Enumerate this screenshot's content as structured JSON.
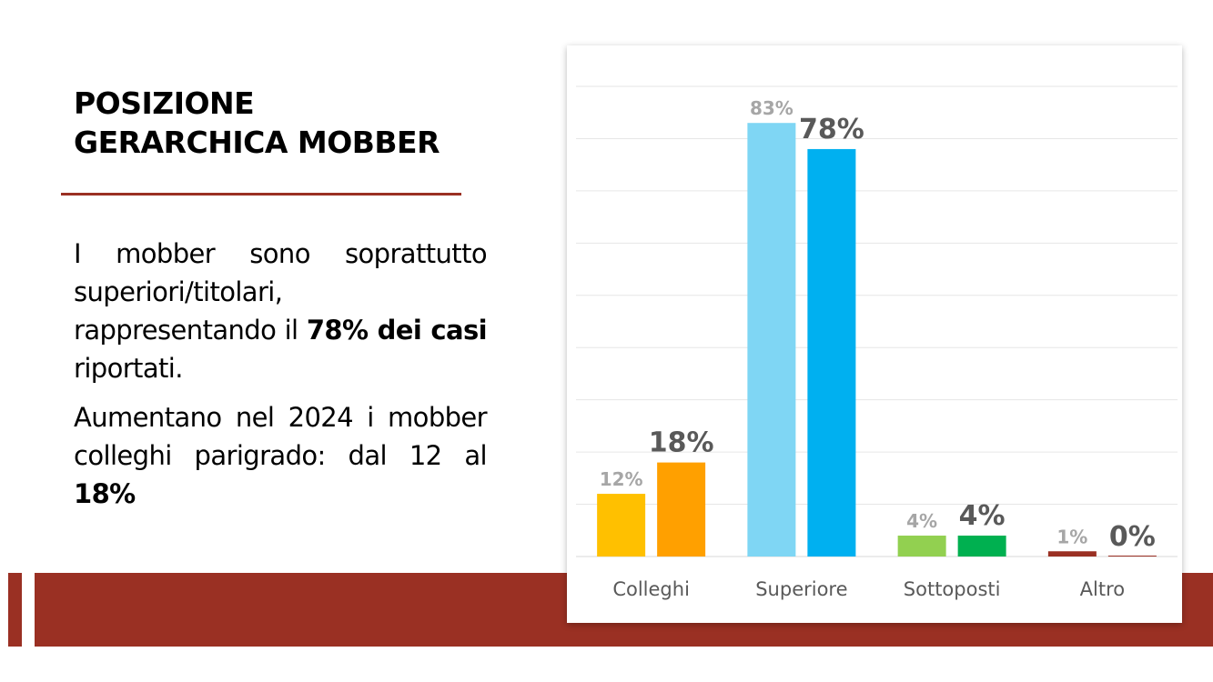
{
  "slide": {
    "title_line1": "POSIZIONE",
    "title_line2": "GERARCHICA MOBBER",
    "para1": {
      "text_a": "I mobber sono soprattutto superiori/titolari, rappresentando il ",
      "bold_a": "78% dei casi",
      "text_b": " riportati."
    },
    "para2": {
      "text_a": "Aumentano nel 2024 i mobber colleghi parigrado: dal 12 al ",
      "bold_a": "18%"
    },
    "colors": {
      "accent": "#9a3023"
    }
  },
  "chart_data": {
    "type": "bar",
    "categories": [
      "Colleghi",
      "Superiore",
      "Sottoposti",
      "Altro"
    ],
    "series": [
      {
        "values": [
          12,
          83,
          4,
          1
        ],
        "labels": [
          "12%",
          "83%",
          "4%",
          "1%"
        ],
        "colors": [
          "#ffc000",
          "#7fd6f4",
          "#92d050",
          "#9a3023"
        ]
      },
      {
        "values": [
          18,
          78,
          4,
          0
        ],
        "labels": [
          "18%",
          "78%",
          "4%",
          "0%"
        ],
        "colors": [
          "#ffa000",
          "#00b0f0",
          "#00b050",
          "#9a3023"
        ]
      }
    ],
    "ylim": [
      0,
      90
    ],
    "grid": true,
    "legend": "none",
    "colors": {
      "grid": "#e6e6e6",
      "axis_label": "#595959",
      "label_prev": "#a6a6a6",
      "label_curr": "#595959"
    }
  }
}
